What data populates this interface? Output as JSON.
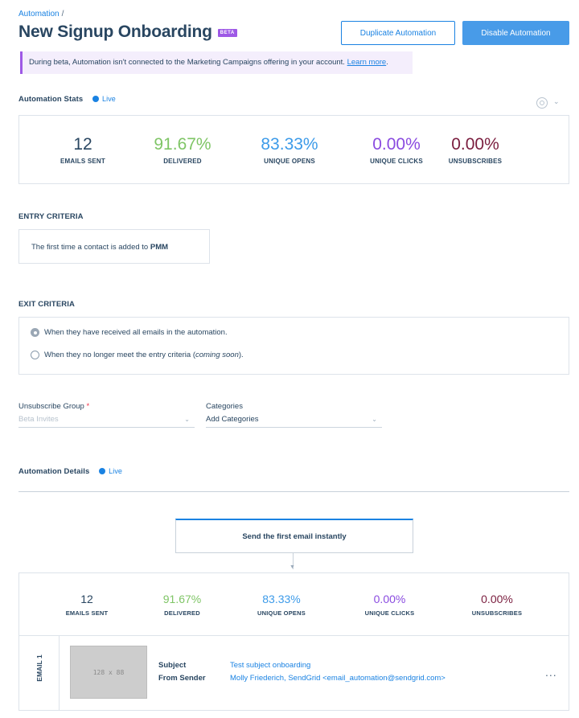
{
  "breadcrumb": {
    "parent": "Automation",
    "separator": "/"
  },
  "page": {
    "title": "New Signup Onboarding",
    "badge": "BETA"
  },
  "actions": {
    "duplicate": "Duplicate Automation",
    "disable": "Disable Automation"
  },
  "banner": {
    "text": "During beta, Automation isn't connected to the Marketing Campaigns offering in your account.",
    "link": "Learn more",
    "suffix": "."
  },
  "stats_section": {
    "title": "Automation Stats",
    "live": "Live",
    "stats": [
      {
        "value": "12",
        "label": "EMAILS SENT",
        "color": "#294661"
      },
      {
        "value": "91.67%",
        "label": "DELIVERED",
        "color": "#7fc566"
      },
      {
        "value": "83.33%",
        "label": "UNIQUE OPENS",
        "color": "#3d9be9"
      },
      {
        "value": "0.00%",
        "label": "UNIQUE CLICKS",
        "color": "#8a4be0"
      },
      {
        "value": "0.00%",
        "label": "UNSUBSCRIBES",
        "color": "#7a1d3e"
      }
    ]
  },
  "entry": {
    "title": "ENTRY CRITERIA",
    "text_prefix": "The first time a contact is added to",
    "list": "PMM"
  },
  "exit": {
    "title": "EXIT CRITERIA",
    "option1": "When they have received all emails in the automation.",
    "option2_prefix": "When they no longer meet the entry criteria (",
    "option2_em": "coming soon",
    "option2_suffix": ")."
  },
  "unsubscribe": {
    "label": "Unsubscribe Group",
    "required": "*",
    "placeholder": "Beta Invites"
  },
  "categories": {
    "label": "Categories",
    "placeholder": "Add Categories"
  },
  "details": {
    "title": "Automation Details",
    "live": "Live",
    "step": "Send the first email instantly",
    "stats": [
      {
        "value": "12",
        "label": "EMAILS SENT",
        "color": "#294661"
      },
      {
        "value": "91.67%",
        "label": "DELIVERED",
        "color": "#7fc566"
      },
      {
        "value": "83.33%",
        "label": "UNIQUE OPENS",
        "color": "#3d9be9"
      },
      {
        "value": "0.00%",
        "label": "UNIQUE CLICKS",
        "color": "#8a4be0"
      },
      {
        "value": "0.00%",
        "label": "UNSUBSCRIBES",
        "color": "#7a1d3e"
      }
    ],
    "email": {
      "tab": "EMAIL 1",
      "thumb": "128 x 88",
      "subject_label": "Subject",
      "subject": "Test subject onboarding",
      "sender_label": "From Sender",
      "sender": "Molly Friederich, SendGrid <email_automation@sendgrid.com>",
      "menu": "..."
    }
  }
}
